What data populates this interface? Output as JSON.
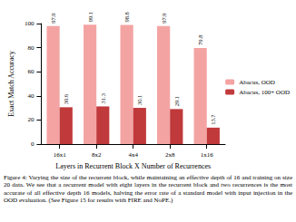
{
  "chart_data": {
    "type": "bar",
    "xlabel": "Layers in Recurrent Block X Number of Recurrences",
    "ylabel": "Exact Match Accuracy",
    "categories": [
      "16x1",
      "8x2",
      "4x4",
      "2x8",
      "1x16"
    ],
    "series": [
      {
        "name": "Abacus, OOD",
        "color": "#f4a3a3",
        "values": [
          97.9,
          99.1,
          98.8,
          97.9,
          79.8
        ]
      },
      {
        "name": "Abacus, 100+ OOD",
        "color": "#c0393b",
        "values": [
          30.6,
          31.3,
          30.1,
          29.1,
          13.7
        ]
      }
    ],
    "ylim": [
      0,
      100
    ],
    "yticks": [
      0,
      20,
      40,
      60,
      80,
      100
    ],
    "grid": false,
    "legend": "right",
    "data_labels": true
  },
  "caption": "Figure 4: Varying the size of the recurrent block, while maintaining an effective depth of 16 and training on size 20 data. We see that a recurrent model with eight layers in the recurrent block and two recurrences is the most accurate of all effective depth 16 models, halving the error rate of a standard model with input injection in the OOD evaluation. (See Figure 15 for results with FIRE and NoPE.)"
}
